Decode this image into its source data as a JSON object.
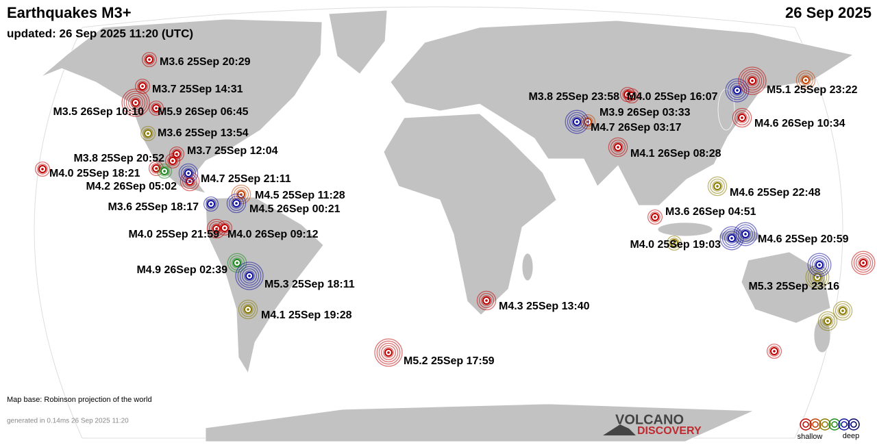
{
  "header": {
    "title": "Earthquakes M3+",
    "date": "26 Sep 2025",
    "updated": "updated: 26 Sep 2025 11:20 (UTC)"
  },
  "quakes": [
    {
      "label": "M3.6 25Sep 20:29",
      "color": "#c00000"
    },
    {
      "label": "M3.7 25Sep 14:31",
      "color": "#c00000"
    },
    {
      "label": "M3.5 26Sep 10:10",
      "color": "#c00000"
    },
    {
      "label": "M5.9 26Sep 06:45",
      "color": "#c00000"
    },
    {
      "label": "M3.6 25Sep 13:54",
      "color": "#8a7a00"
    },
    {
      "label": "M3.7 25Sep 12:04",
      "color": "#c00000"
    },
    {
      "label": "M3.8 25Sep 20:52",
      "color": "#c00000"
    },
    {
      "label": "M4.0 25Sep 18:21",
      "color": "#c00000"
    },
    {
      "label": "M4.2 26Sep 05:02",
      "color": "#1a8a1a"
    },
    {
      "label": "M4.7 25Sep 21:11",
      "color": "#1010a0"
    },
    {
      "label": "M4.5 25Sep 11:28",
      "color": "#c04000"
    },
    {
      "label": "M3.6 25Sep 18:17",
      "color": "#1010a0"
    },
    {
      "label": "M4.5 26Sep 00:21",
      "color": "#1010a0"
    },
    {
      "label": "M4.0 25Sep 21:59",
      "color": "#c00000"
    },
    {
      "label": "M4.0 26Sep 09:12",
      "color": "#c00000"
    },
    {
      "label": "M4.9 26Sep 02:39",
      "color": "#1a8a1a"
    },
    {
      "label": "M5.3 25Sep 18:11",
      "color": "#1010a0"
    },
    {
      "label": "M4.1 25Sep 19:28",
      "color": "#8a7a00"
    },
    {
      "label": "M4.3 25Sep 13:40",
      "color": "#c00000"
    },
    {
      "label": "M5.2 25Sep 17:59",
      "color": "#c00000"
    },
    {
      "label": "M3.8 25Sep 23:58",
      "color": "#c00000"
    },
    {
      "label": "M4.0 25Sep 16:07",
      "color": "#c00000"
    },
    {
      "label": "M3.9 26Sep 03:33",
      "color": "#c04000"
    },
    {
      "label": "M4.7 26Sep 03:17",
      "color": "#1010a0"
    },
    {
      "label": "M4.1 26Sep 08:28",
      "color": "#c00000"
    },
    {
      "label": "M5.1 25Sep 23:22",
      "color": "#c00000"
    },
    {
      "label": "M4.6 26Sep 10:34",
      "color": "#c00000"
    },
    {
      "label": "M4.6 25Sep 22:48",
      "color": "#8a7a00"
    },
    {
      "label": "M3.6 26Sep 04:51",
      "color": "#c00000"
    },
    {
      "label": "M4.0 25Sep 19:03",
      "color": "#8a7a00"
    },
    {
      "label": "M4.6 25Sep 20:59",
      "color": "#1010a0"
    },
    {
      "label": "M5.3 25Sep 23:16",
      "color": "#1010a0"
    }
  ],
  "footer": {
    "map_base": "Map base: Robinson projection of the world",
    "generated": "generated in 0.14ms 26 Sep 2025 11:20"
  },
  "logo": {
    "line1": "VOLCANO",
    "line2": "DISCOVERY"
  },
  "legend": {
    "shallow": "shallow",
    "deep": "deep"
  }
}
